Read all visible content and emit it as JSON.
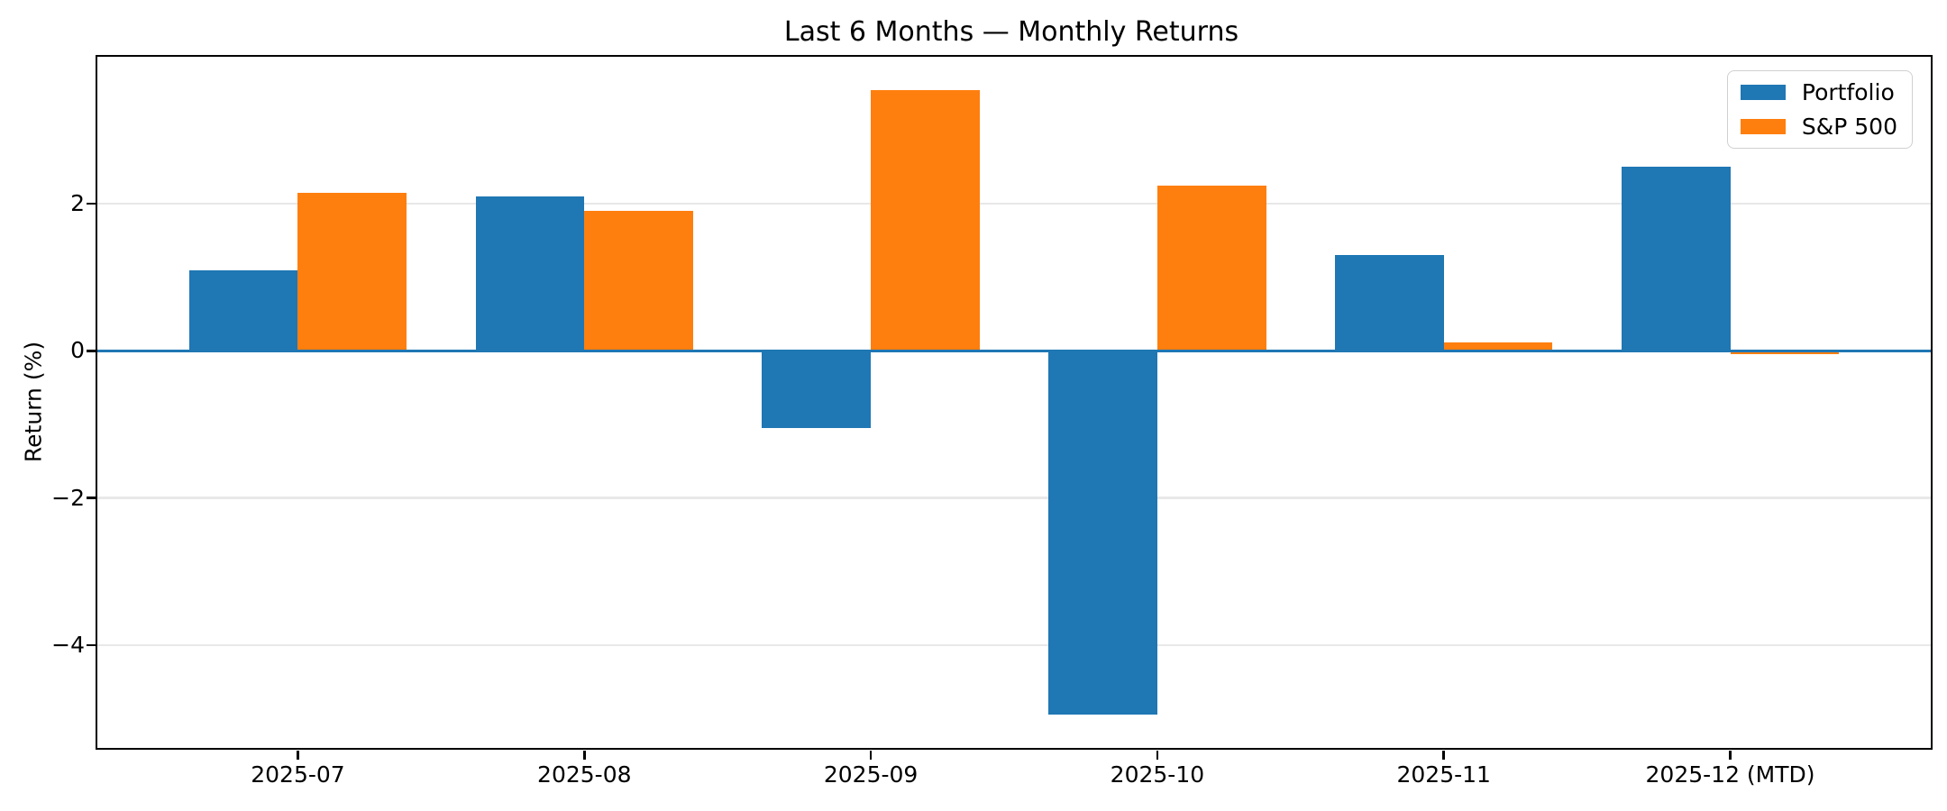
{
  "figure": {
    "background_color": "#ffffff"
  },
  "chart_data": {
    "type": "bar",
    "title": "Last 6 Months — Monthly Returns",
    "xlabel": "",
    "ylabel": "Return (%)",
    "categories": [
      "2025-07",
      "2025-08",
      "2025-09",
      "2025-10",
      "2025-11",
      "2025-12 (MTD)"
    ],
    "series": [
      {
        "name": "Portfolio",
        "color": "#1f77b4",
        "values": [
          1.1,
          2.1,
          -1.05,
          -4.95,
          1.3,
          2.5
        ]
      },
      {
        "name": "S&P 500",
        "color": "#ff7f0e",
        "values": [
          2.15,
          1.9,
          3.55,
          2.25,
          0.12,
          -0.05
        ]
      }
    ],
    "yticks": {
      "values": [
        2,
        0,
        -2,
        -4
      ],
      "labels": [
        "2",
        "0",
        "−2",
        "−4"
      ]
    },
    "ylim": [
      -5.4,
      4.0
    ],
    "grid": "horizontal",
    "gridline_color": "#e8e8e8",
    "zero_line_color": "#1f77b4",
    "legend": {
      "position": "upper right",
      "entries": [
        "Portfolio",
        "S&P 500"
      ]
    }
  }
}
